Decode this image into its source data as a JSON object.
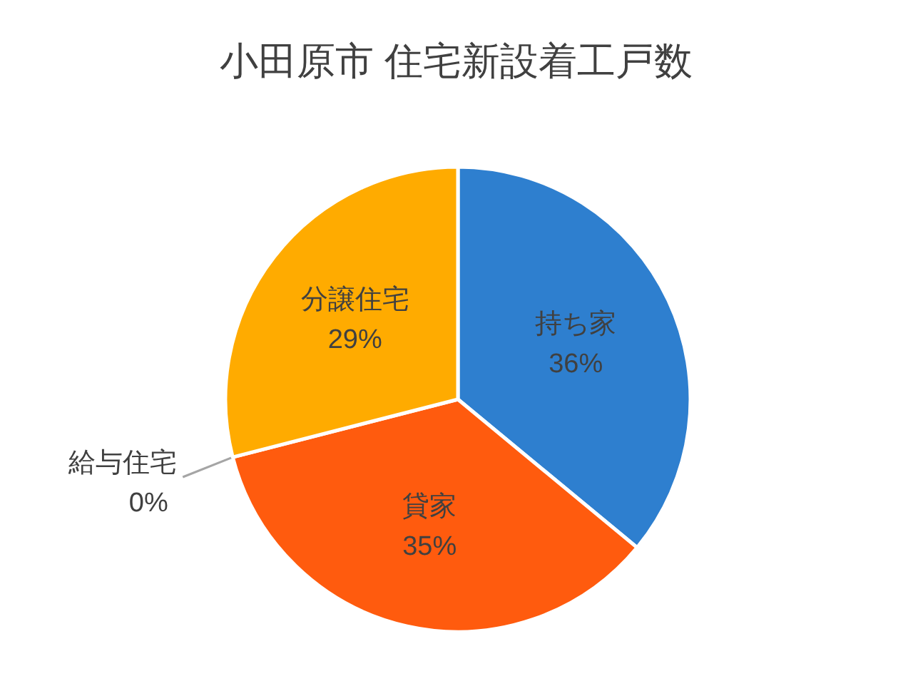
{
  "chart_data": {
    "type": "pie",
    "title": "小田原市 住宅新設着工戸数",
    "categories": [
      "持ち家",
      "貸家",
      "給与住宅",
      "分譲住宅"
    ],
    "values": [
      36,
      35,
      0,
      29
    ],
    "value_labels": [
      "36%",
      "35%",
      "0%",
      "29%"
    ],
    "colors": [
      "#2e7fcf",
      "#ff5b0e",
      "#a5a5a5",
      "#ffab00"
    ]
  }
}
